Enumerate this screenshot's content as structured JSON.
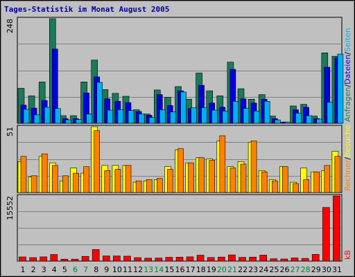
{
  "chart_data": {
    "type": "bar",
    "title": "Tages-Statistik im Monat August 2005",
    "categories": [
      "1",
      "2",
      "3",
      "4",
      "5",
      "6",
      "7",
      "8",
      "9",
      "10",
      "11",
      "12",
      "13",
      "14",
      "15",
      "16",
      "17",
      "18",
      "19",
      "20",
      "21",
      "22",
      "23",
      "24",
      "25",
      "26",
      "27",
      "28",
      "29",
      "30",
      "31"
    ],
    "weekend_days": [
      "6",
      "7",
      "13",
      "14",
      "20",
      "21",
      "27",
      "28"
    ],
    "colors": {
      "background": "#c0c0c0",
      "plot_background": "#c0c0c0",
      "title": "#0000a0",
      "weekday_tick": "#000000",
      "weekend_tick": "#008040",
      "anfragen": "#1a7a5c",
      "dateien": "#0000e0",
      "seiten": "#00b0f0",
      "besuche": "#ffff00",
      "rechner": "#ff8000",
      "kb": "#ff0000"
    },
    "panels": [
      {
        "id": "requests",
        "axis_max_label": "248",
        "ymax": 248,
        "legend": [
          {
            "label": "Anfragen",
            "color": "#1a7a5c"
          },
          {
            "label": "/",
            "color": "#000000"
          },
          {
            "label": "Dateien",
            "color": "#0000e0"
          },
          {
            "label": "/",
            "color": "#000000"
          },
          {
            "label": "Seiten",
            "color": "#00b0f0"
          }
        ],
        "series": [
          {
            "name": "Anfragen",
            "values": [
              83,
              65,
              98,
              248,
              18,
              18,
              98,
              150,
              80,
              71,
              64,
              32,
              22,
              79,
              62,
              87,
              57,
              119,
              77,
              65,
              145,
              82,
              57,
              68,
              17,
              3,
              41,
              45,
              17,
              167,
              159
            ]
          },
          {
            "name": "Dateien",
            "values": [
              43,
              36,
              54,
              176,
              11,
              11,
              72,
              110,
              58,
              52,
              49,
              28,
              19,
              68,
              42,
              77,
              35,
              90,
              48,
              38,
              128,
              58,
              48,
              57,
              11,
              3,
              32,
              38,
              11,
              133,
              155
            ]
          },
          {
            "name": "Seiten",
            "values": [
              33,
              20,
              38,
              35,
              8,
              9,
              22,
              97,
              31,
              32,
              30,
              22,
              14,
              32,
              27,
              74,
              37,
              37,
              31,
              29,
              52,
              35,
              29,
              52,
              8,
              3,
              24,
              18,
              10,
              50,
              164
            ]
          }
        ]
      },
      {
        "id": "visits",
        "axis_max_label": "51",
        "ymax": 51,
        "legend": [
          {
            "label": "Rechner",
            "color": "#ff8000"
          },
          {
            "label": "/",
            "color": "#000000"
          },
          {
            "label": "Besuche",
            "color": "#ffff00"
          }
        ],
        "series": [
          {
            "name": "Besuche",
            "values": [
              24,
              12,
              28,
              23,
              9,
              19,
              15,
              51,
              21,
              21,
              21,
              8,
              9,
              10,
              20,
              33,
              23,
              27,
              26,
              40,
              20,
              24,
              39,
              17,
              10,
              20,
              8,
              19,
              16,
              17,
              32
            ]
          },
          {
            "name": "Rechner",
            "values": [
              28,
              13,
              30,
              21,
              13,
              15,
              20,
              48,
              17,
              18,
              21,
              9,
              10,
              11,
              18,
              34,
              23,
              27,
              25,
              44,
              19,
              22,
              40,
              16,
              9,
              20,
              7,
              10,
              16,
              21,
              28
            ]
          }
        ]
      },
      {
        "id": "kb",
        "axis_max_label": "15552",
        "ymax": 15552,
        "legend": [
          {
            "label": "kB",
            "color": "#ff0000"
          }
        ],
        "series": [
          {
            "name": "kB",
            "values": [
              1000,
              820,
              1010,
              1570,
              460,
              460,
              1130,
              2760,
              1230,
              1230,
              1180,
              830,
              690,
              720,
              910,
              930,
              1010,
              1410,
              860,
              960,
              1470,
              870,
              950,
              1430,
              550,
              500,
              740,
              640,
              1610,
              12800,
              15552
            ]
          }
        ]
      }
    ]
  }
}
